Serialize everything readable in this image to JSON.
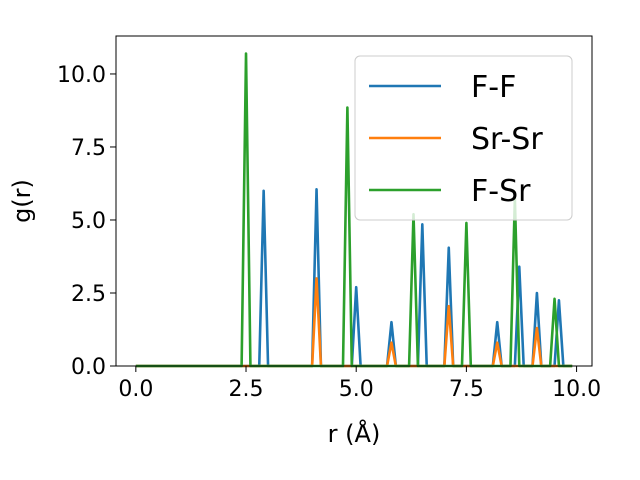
{
  "chart_data": {
    "type": "line",
    "title": "",
    "xlabel": "r (Å)",
    "ylabel": "g(r)",
    "xlim": [
      -0.45,
      10.35
    ],
    "ylim": [
      0,
      11.3
    ],
    "xticks": [
      0.0,
      2.5,
      5.0,
      7.5,
      10.0
    ],
    "xtick_labels": [
      "0.0",
      "2.5",
      "5.0",
      "7.5",
      "10.0"
    ],
    "yticks": [
      0.0,
      2.5,
      5.0,
      7.5,
      10.0
    ],
    "ytick_labels": [
      "0.0",
      "2.5",
      "5.0",
      "7.5",
      "10.0"
    ],
    "grid": false,
    "legend_position": "top-right",
    "series": [
      {
        "name": "F-F",
        "color": "#1f77b4",
        "x": [
          0.0,
          2.8,
          2.9,
          3.0,
          4.0,
          4.1,
          4.2,
          4.9,
          5.0,
          5.1,
          5.7,
          5.8,
          5.9,
          6.4,
          6.5,
          6.6,
          7.0,
          7.1,
          7.2,
          8.1,
          8.2,
          8.3,
          8.6,
          8.7,
          8.8,
          9.0,
          9.1,
          9.2,
          9.5,
          9.6,
          9.7,
          9.9
        ],
        "y": [
          0,
          0,
          6.0,
          0,
          0,
          6.05,
          0,
          0,
          2.7,
          0,
          0,
          1.5,
          0,
          0,
          4.85,
          0,
          0,
          4.05,
          0,
          0,
          1.5,
          0,
          0,
          3.4,
          0,
          0,
          2.5,
          0,
          0,
          2.25,
          0,
          0
        ]
      },
      {
        "name": "Sr-Sr",
        "color": "#ff7f0e",
        "x": [
          0.0,
          4.0,
          4.1,
          4.2,
          5.7,
          5.8,
          5.9,
          7.0,
          7.1,
          7.2,
          8.1,
          8.2,
          8.3,
          9.0,
          9.1,
          9.2,
          9.9
        ],
        "y": [
          0,
          0,
          3.0,
          0,
          0,
          0.8,
          0,
          0,
          2.05,
          0,
          0,
          0.8,
          0,
          0,
          1.3,
          0,
          0
        ]
      },
      {
        "name": "F-Sr",
        "color": "#2ca02c",
        "x": [
          0.0,
          2.4,
          2.5,
          2.6,
          4.7,
          4.8,
          4.9,
          6.2,
          6.3,
          6.4,
          7.4,
          7.5,
          7.6,
          8.5,
          8.6,
          8.7,
          9.4,
          9.5,
          9.6,
          9.9
        ],
        "y": [
          0,
          0,
          10.7,
          0,
          0,
          8.85,
          0,
          0,
          5.2,
          0,
          0,
          4.9,
          0,
          0,
          5.75,
          0,
          0,
          2.3,
          0,
          0
        ]
      }
    ]
  }
}
